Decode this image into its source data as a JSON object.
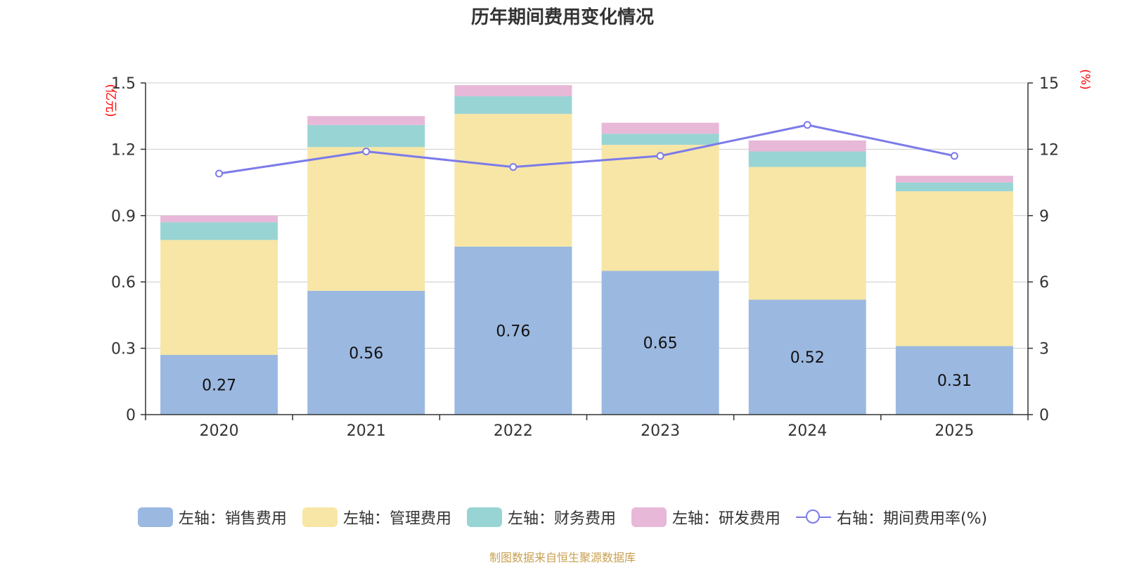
{
  "colors": {
    "sales": "#9bb8e0",
    "admin": "#f7e6a6",
    "finance": "#99d4d4",
    "rd": "#e8b8d8",
    "rate": "#7b7bea",
    "axis_unit": "#ff0000",
    "grid": "#cccccc",
    "source": "#c8a050"
  },
  "chart_data": {
    "type": "bar",
    "stacked": true,
    "title": "历年期间费用变化情况",
    "source": "制图数据来自恒生聚源数据库",
    "categories": [
      "2020",
      "2021",
      "2022",
      "2023",
      "2024",
      "2025"
    ],
    "left_axis": {
      "unit": "(亿元)",
      "range": [
        0,
        1.5
      ],
      "ticks": [
        "0",
        "0.3",
        "0.6",
        "0.9",
        "1.2",
        "1.5"
      ]
    },
    "right_axis": {
      "unit": "(%)",
      "range": [
        0,
        15
      ],
      "ticks": [
        "0",
        "3",
        "6",
        "9",
        "12",
        "15"
      ]
    },
    "series": [
      {
        "key": "sales",
        "name": "左轴：销售费用",
        "axis": "left",
        "type": "bar",
        "values": [
          0.27,
          0.56,
          0.76,
          0.65,
          0.52,
          0.31
        ],
        "labels": [
          "0.27",
          "0.56",
          "0.76",
          "0.65",
          "0.52",
          "0.31"
        ]
      },
      {
        "key": "admin",
        "name": "左轴：管理费用",
        "axis": "left",
        "type": "bar",
        "values": [
          0.52,
          0.65,
          0.6,
          0.57,
          0.6,
          0.7
        ]
      },
      {
        "key": "finance",
        "name": "左轴：财务费用",
        "axis": "left",
        "type": "bar",
        "values": [
          0.08,
          0.1,
          0.08,
          0.05,
          0.07,
          0.04
        ]
      },
      {
        "key": "rd",
        "name": "左轴：研发费用",
        "axis": "left",
        "type": "bar",
        "values": [
          0.03,
          0.04,
          0.05,
          0.05,
          0.05,
          0.03
        ]
      },
      {
        "key": "rate",
        "name": "右轴：期间费用率(%)",
        "axis": "right",
        "type": "line",
        "values": [
          10.9,
          11.9,
          11.2,
          11.7,
          13.1,
          11.7
        ]
      }
    ],
    "legend_position": "bottom",
    "grid": true
  }
}
